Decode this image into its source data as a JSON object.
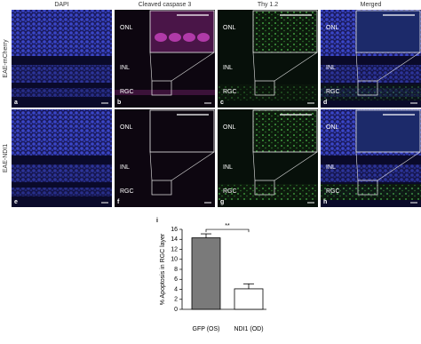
{
  "columns": [
    "DAPI",
    "Cleaved caspase 3",
    "Thy 1.2",
    "Merged"
  ],
  "rows": [
    "EAE-mCherry",
    "EAE-NDI1"
  ],
  "panels": [
    {
      "letter": "a",
      "layers": []
    },
    {
      "letter": "b",
      "layers": [
        "ONL",
        "INL",
        "RGC"
      ]
    },
    {
      "letter": "c",
      "layers": [
        "ONL",
        "INL",
        "RGC"
      ]
    },
    {
      "letter": "d",
      "layers": [
        "ONL",
        "INL",
        "RGC"
      ]
    },
    {
      "letter": "e",
      "layers": []
    },
    {
      "letter": "f",
      "layers": [
        "ONL",
        "INL",
        "RGC"
      ]
    },
    {
      "letter": "g",
      "layers": [
        "ONL",
        "INL",
        "RGC"
      ]
    },
    {
      "letter": "h",
      "layers": [
        "ONL",
        "INL",
        "RGC"
      ]
    }
  ],
  "chart_data": {
    "type": "bar",
    "panel_label": "i",
    "y_label": "% Apoptosis in RGC layer",
    "categories": [
      "GFP (OS)",
      "NDI1 (OD)"
    ],
    "values": [
      14.3,
      4.1
    ],
    "errors": [
      0.8,
      1.0
    ],
    "colors": [
      "#7a7a7a",
      "#ffffff"
    ],
    "significance": "**",
    "ylim": [
      0,
      16
    ],
    "yticks": [
      0,
      2,
      4,
      6,
      8,
      10,
      12,
      14,
      16
    ]
  }
}
